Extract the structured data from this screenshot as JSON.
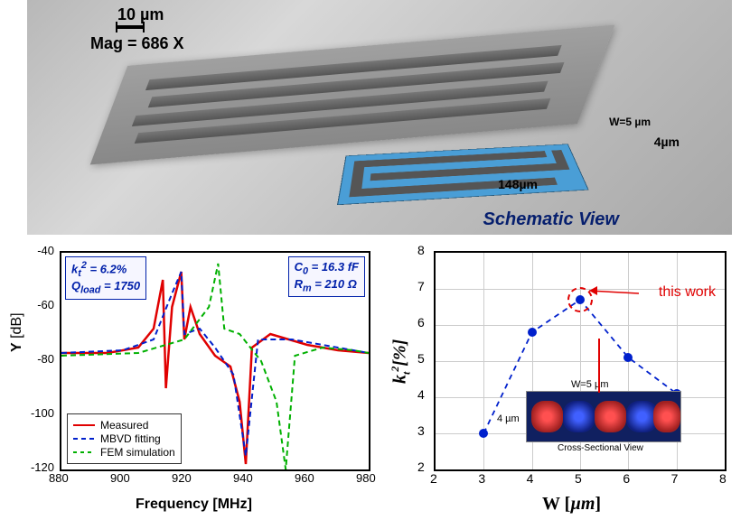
{
  "sem": {
    "scale_text": "10 µm",
    "mag_text": "Mag =   686 X",
    "text_color": "#000000",
    "text_fontsize": 18,
    "schematic_label": "Schematic View",
    "dim_height": "4µm",
    "dim_length": "148µm",
    "dim_w": "W=5 µm",
    "schematic_blue": "#4a9ed6",
    "schematic_gray": "#555555"
  },
  "chart_left": {
    "type": "line",
    "xlabel": "Frequency",
    "xlabel_unit": "[MHz]",
    "ylabel": "Y",
    "ylabel_unit": "[dB]",
    "xlim": [
      880,
      980
    ],
    "xtick_step": 20,
    "xticks": [
      880,
      900,
      920,
      940,
      960,
      980
    ],
    "ylim": [
      -120,
      -40
    ],
    "ytick_step": 20,
    "yticks": [
      -120,
      -100,
      -80,
      -60,
      -40
    ],
    "info_box_left": {
      "kt2": "k_t^2 = 6.2%",
      "qload": "Q_load = 1750"
    },
    "info_box_right": {
      "c0": "C_0 = 16.3 fF",
      "rm": "R_m = 210 Ω"
    },
    "series": [
      {
        "name": "Measured",
        "color": "#e00000",
        "style": "solid",
        "width": 2.5,
        "points": [
          [
            880,
            -77
          ],
          [
            895,
            -77
          ],
          [
            905,
            -75
          ],
          [
            910,
            -68
          ],
          [
            913,
            -50
          ],
          [
            914,
            -90
          ],
          [
            916,
            -60
          ],
          [
            919,
            -47
          ],
          [
            920,
            -72
          ],
          [
            922,
            -60
          ],
          [
            925,
            -70
          ],
          [
            930,
            -78
          ],
          [
            935,
            -82
          ],
          [
            938,
            -95
          ],
          [
            940,
            -118
          ],
          [
            942,
            -75
          ],
          [
            948,
            -70
          ],
          [
            960,
            -74
          ],
          [
            970,
            -76
          ],
          [
            980,
            -77
          ]
        ]
      },
      {
        "name": "MBVD fitting",
        "color": "#0020cc",
        "style": "dash",
        "width": 2,
        "points": [
          [
            880,
            -77
          ],
          [
            900,
            -76
          ],
          [
            910,
            -72
          ],
          [
            916,
            -55
          ],
          [
            919,
            -47
          ],
          [
            920,
            -70
          ],
          [
            925,
            -68
          ],
          [
            930,
            -75
          ],
          [
            936,
            -85
          ],
          [
            940,
            -115
          ],
          [
            944,
            -72
          ],
          [
            955,
            -72
          ],
          [
            970,
            -75
          ],
          [
            980,
            -77
          ]
        ]
      },
      {
        "name": "FEM simulation",
        "color": "#00b000",
        "style": "dash",
        "width": 2,
        "points": [
          [
            880,
            -78
          ],
          [
            905,
            -77
          ],
          [
            920,
            -72
          ],
          [
            928,
            -60
          ],
          [
            931,
            -44
          ],
          [
            933,
            -68
          ],
          [
            938,
            -70
          ],
          [
            945,
            -80
          ],
          [
            950,
            -95
          ],
          [
            953,
            -120
          ],
          [
            956,
            -78
          ],
          [
            965,
            -75
          ],
          [
            975,
            -76
          ],
          [
            980,
            -77
          ]
        ]
      }
    ],
    "legend_labels": {
      "measured": "Measured",
      "mbvd": "MBVD fitting",
      "fem": "FEM simulation"
    },
    "axis_fontsize": 16,
    "tick_fontsize": 13,
    "border_color": "#000000"
  },
  "chart_right": {
    "type": "scatter+line",
    "xlabel": "W",
    "xlabel_unit": "[µm]",
    "ylabel": "k_t^2",
    "ylabel_unit": "[%]",
    "xlim": [
      2,
      8
    ],
    "xticks": [
      2,
      3,
      4,
      5,
      6,
      7,
      8
    ],
    "ylim": [
      2,
      8
    ],
    "yticks": [
      2,
      3,
      4,
      5,
      6,
      7,
      8
    ],
    "points": [
      {
        "x": 3,
        "y": 3.0
      },
      {
        "x": 4,
        "y": 5.8
      },
      {
        "x": 5,
        "y": 6.7,
        "highlight": true
      },
      {
        "x": 6,
        "y": 5.1
      },
      {
        "x": 7,
        "y": 4.1
      }
    ],
    "marker_color": "#0020cc",
    "line_color": "#0020cc",
    "line_style": "dash",
    "highlight_color": "#e00000",
    "annotation": "this work",
    "grid_color": "#cccccc",
    "inset": {
      "caption": "Cross-Sectional View",
      "label_w": "W=5 µm",
      "label_h": "4 µm",
      "bg": "#102060",
      "hot": "#ff3030",
      "cold": "#2030c0"
    },
    "axis_fontsize": 18,
    "tick_fontsize": 14
  }
}
